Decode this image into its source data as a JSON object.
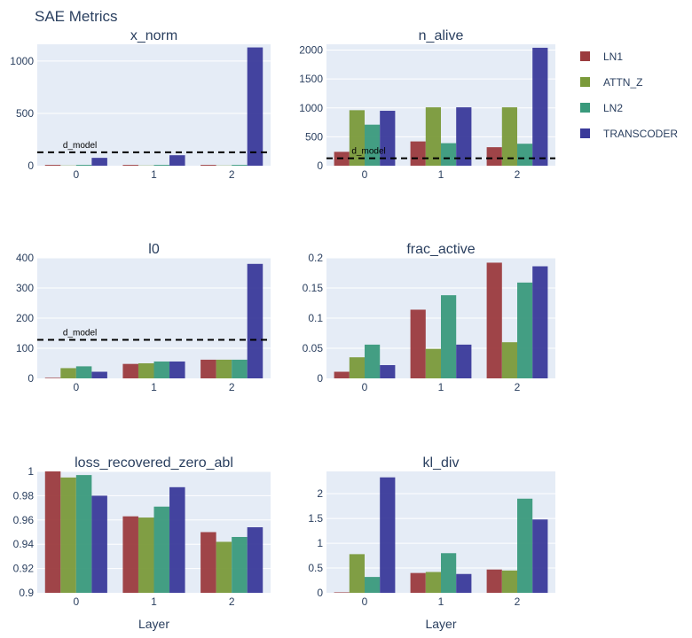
{
  "chart_data": {
    "type": "bar",
    "title": "SAE Metrics",
    "categories": [
      "0",
      "1",
      "2"
    ],
    "xlabel": "Layer",
    "series_names": [
      "LN1",
      "ATTN_Z",
      "LN2",
      "TRANSCODER"
    ],
    "colors": {
      "LN1": "#9b3b3e",
      "ATTN_Z": "#7a9a3a",
      "LN2": "#3a9a7c",
      "TRANSCODER": "#3a3a9a"
    },
    "reference_label": "d_model",
    "subplots": [
      {
        "title": "x_norm",
        "ylim": [
          0,
          1160
        ],
        "yticks": [
          0,
          500,
          1000
        ],
        "ytick_labels": [
          "0",
          "500",
          "1000"
        ],
        "reference_line": 128,
        "series": [
          {
            "name": "LN1",
            "values": [
              8,
              8,
              8
            ]
          },
          {
            "name": "ATTN_Z",
            "values": [
              2,
              2,
              2
            ]
          },
          {
            "name": "LN2",
            "values": [
              8,
              8,
              8
            ]
          },
          {
            "name": "TRANSCODER",
            "values": [
              75,
              100,
              1130
            ]
          }
        ]
      },
      {
        "title": "n_alive",
        "ylim": [
          0,
          2100
        ],
        "yticks": [
          0,
          500,
          1000,
          1500,
          2000
        ],
        "ytick_labels": [
          "0",
          "500",
          "1000",
          "1500",
          "2000"
        ],
        "reference_line": 128,
        "series": [
          {
            "name": "LN1",
            "values": [
              240,
              420,
              320
            ]
          },
          {
            "name": "ATTN_Z",
            "values": [
              960,
              1010,
              1010
            ]
          },
          {
            "name": "LN2",
            "values": [
              710,
              390,
              380
            ]
          },
          {
            "name": "TRANSCODER",
            "values": [
              950,
              1010,
              2040
            ]
          }
        ]
      },
      {
        "title": "l0",
        "ylim": [
          0,
          400
        ],
        "yticks": [
          0,
          100,
          200,
          300,
          400
        ],
        "ytick_labels": [
          "0",
          "100",
          "200",
          "300",
          "400"
        ],
        "reference_line": 128,
        "series": [
          {
            "name": "LN1",
            "values": [
              2,
              48,
              62
            ]
          },
          {
            "name": "ATTN_Z",
            "values": [
              34,
              50,
              62
            ]
          },
          {
            "name": "LN2",
            "values": [
              40,
              56,
              62
            ]
          },
          {
            "name": "TRANSCODER",
            "values": [
              22,
              56,
              380
            ]
          }
        ]
      },
      {
        "title": "frac_active",
        "ylim": [
          0,
          0.2
        ],
        "yticks": [
          0,
          0.05,
          0.1,
          0.15,
          0.2
        ],
        "ytick_labels": [
          "0",
          "0.05",
          "0.1",
          "0.15",
          "0.2"
        ],
        "series": [
          {
            "name": "LN1",
            "values": [
              0.011,
              0.114,
              0.192
            ]
          },
          {
            "name": "ATTN_Z",
            "values": [
              0.035,
              0.049,
              0.06
            ]
          },
          {
            "name": "LN2",
            "values": [
              0.056,
              0.138,
              0.159
            ]
          },
          {
            "name": "TRANSCODER",
            "values": [
              0.022,
              0.056,
              0.186
            ]
          }
        ]
      },
      {
        "title": "loss_recovered_zero_abl",
        "ylim": [
          0.9,
          1.0
        ],
        "yticks": [
          0.9,
          0.92,
          0.94,
          0.96,
          0.98,
          1.0
        ],
        "ytick_labels": [
          "0.9",
          "0.92",
          "0.94",
          "0.96",
          "0.98",
          "1"
        ],
        "series": [
          {
            "name": "LN1",
            "values": [
              1.0,
              0.963,
              0.95
            ]
          },
          {
            "name": "ATTN_Z",
            "values": [
              0.995,
              0.962,
              0.942
            ]
          },
          {
            "name": "LN2",
            "values": [
              0.997,
              0.971,
              0.946
            ]
          },
          {
            "name": "TRANSCODER",
            "values": [
              0.98,
              0.987,
              0.954
            ]
          }
        ]
      },
      {
        "title": "kl_div",
        "ylim": [
          0,
          2.45
        ],
        "yticks": [
          0,
          0.5,
          1,
          1.5,
          2
        ],
        "ytick_labels": [
          "0",
          "0.5",
          "1",
          "1.5",
          "2"
        ],
        "series": [
          {
            "name": "LN1",
            "values": [
              0.01,
              0.4,
              0.47
            ]
          },
          {
            "name": "ATTN_Z",
            "values": [
              0.78,
              0.42,
              0.45
            ]
          },
          {
            "name": "LN2",
            "values": [
              0.32,
              0.8,
              1.9
            ]
          },
          {
            "name": "TRANSCODER",
            "values": [
              2.33,
              0.38,
              1.48
            ]
          }
        ]
      }
    ]
  }
}
